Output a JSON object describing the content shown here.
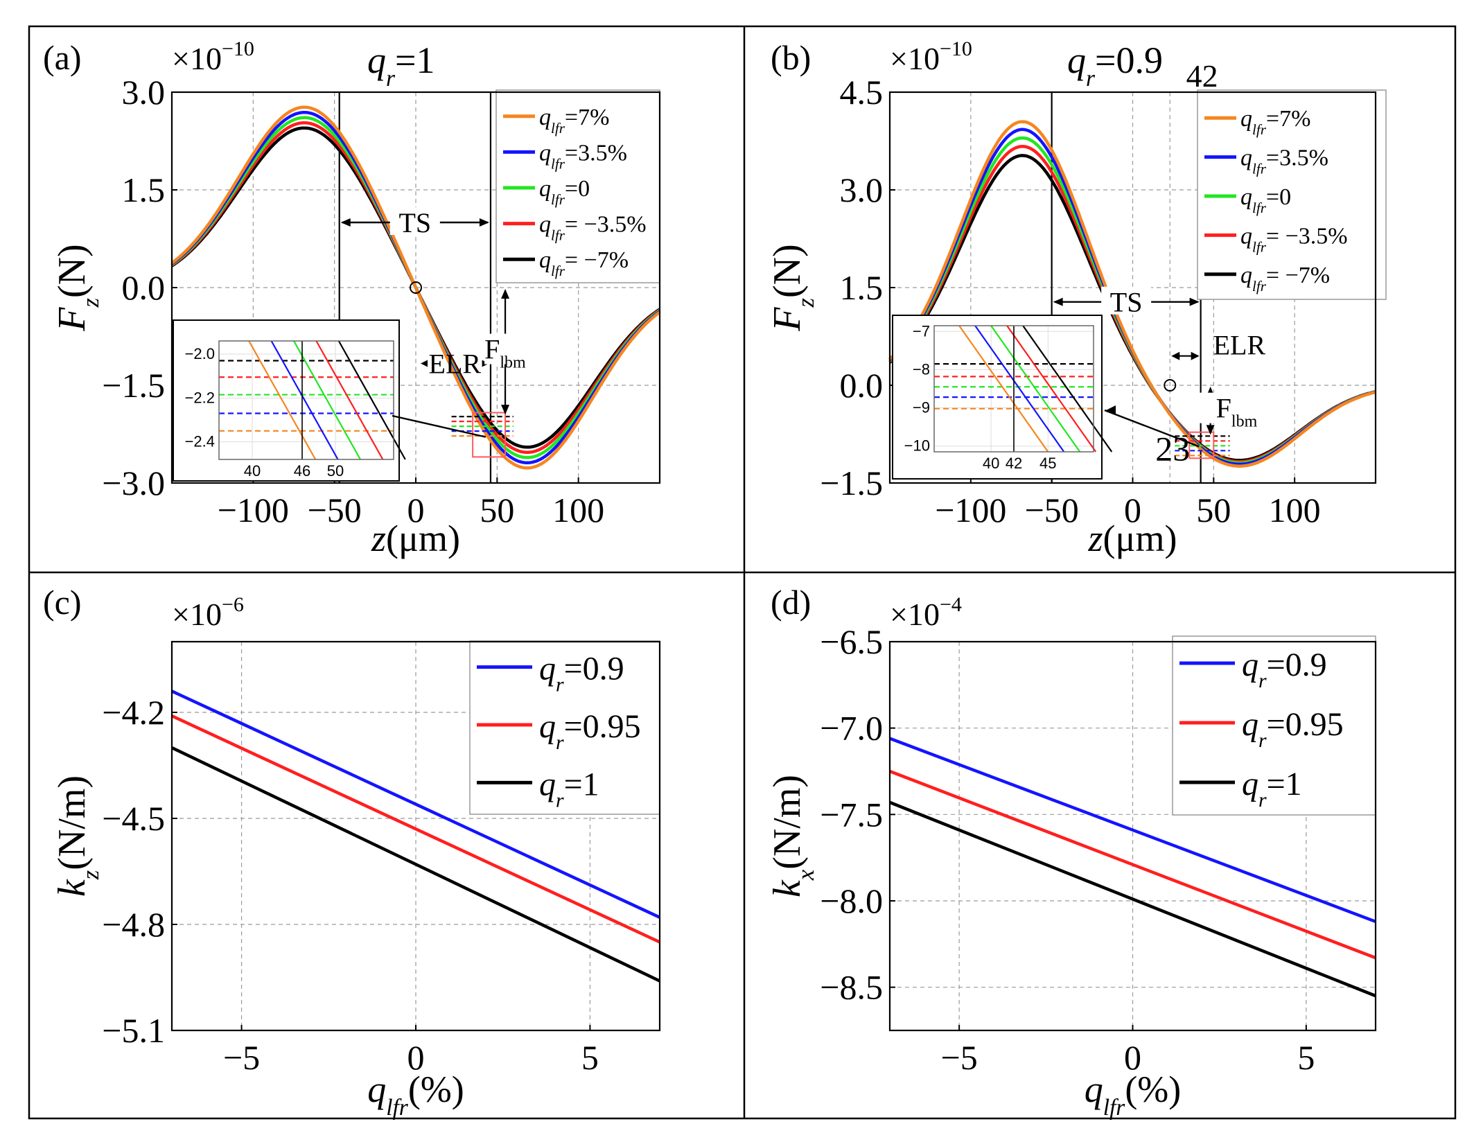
{
  "colors": {
    "orange": "#f5861f",
    "blue": "#1414ff",
    "green": "#22e622",
    "red": "#ff1f1f",
    "black": "#000000",
    "grid": "#9a9a9a",
    "box": "#ff5a5a"
  },
  "chart_data": [
    {
      "id": "a",
      "type": "line",
      "panel_label": "(a)",
      "title": "qr=1",
      "title_parts": {
        "var": "q",
        "sub": "r",
        "rest": "=1"
      },
      "exponent": {
        "base": "×10",
        "power": "−10"
      },
      "xlabel": {
        "var": "z",
        "rest": "(μm)"
      },
      "ylabel": {
        "var": "F",
        "sub": "z",
        "rest": "(N)"
      },
      "xlim": [
        -150,
        150
      ],
      "ylim": [
        -3.0,
        3.0
      ],
      "xticks": [
        -100,
        -50,
        0,
        50,
        100
      ],
      "xticklabels": [
        "−100",
        "−50",
        "0",
        "50",
        "100"
      ],
      "yticks": [
        3.0,
        1.5,
        0.0,
        -1.5,
        -3.0
      ],
      "yticklabels": [
        "3.0",
        "1.5",
        "0.0",
        "−1.5",
        "−3.0"
      ],
      "legend": [
        {
          "label": "qlfr=7%",
          "var": "q",
          "sub": "lfr",
          "rest": "=7%",
          "color": "orange"
        },
        {
          "label": "qlfr=3.5%",
          "var": "q",
          "sub": "lfr",
          "rest": "=3.5%",
          "color": "blue"
        },
        {
          "label": "qlfr=0",
          "var": "q",
          "sub": "lfr",
          "rest": "=0",
          "color": "green"
        },
        {
          "label": "qlfr= −3.5%",
          "var": "q",
          "sub": "lfr",
          "rest": "= −3.5%",
          "color": "red"
        },
        {
          "label": "qlfr= −7%",
          "var": "q",
          "sub": "lfr",
          "rest": "= −7%",
          "color": "black"
        }
      ],
      "curve_model": {
        "peak_z": -68,
        "trough_z": 68,
        "width": 58
      },
      "series": [
        {
          "name": "qlfr=7%",
          "color": "orange",
          "amplitude": 2.78
        },
        {
          "name": "qlfr=3.5%",
          "color": "blue",
          "amplitude": 2.7
        },
        {
          "name": "qlfr=0",
          "color": "green",
          "amplitude": 2.62
        },
        {
          "name": "qlfr=-3.5%",
          "color": "red",
          "amplitude": 2.54
        },
        {
          "name": "qlfr=-7%",
          "color": "black",
          "amplitude": 2.46
        }
      ],
      "vlines": [
        -47,
        46
      ],
      "annotations": {
        "TS": "TS",
        "ELR": "ELR",
        "F_lbm": "F",
        "F_lbm_sub": "lbm",
        "marker_label": "",
        "marker2_label": ""
      },
      "inset": {
        "xlim": [
          36,
          57
        ],
        "ylim": [
          -2.48,
          -1.94
        ],
        "xticks": [
          40,
          46,
          50
        ],
        "xticklabels": [
          "40",
          "46",
          "50"
        ],
        "yticks": [
          -2.0,
          -2.2,
          -2.4
        ],
        "yticklabels": [
          "−2.0",
          "−2.2",
          "−2.4"
        ],
        "vline": 46,
        "levels": [
          {
            "color": "black",
            "y": -2.03
          },
          {
            "color": "red",
            "y": -2.105
          },
          {
            "color": "green",
            "y": -2.185
          },
          {
            "color": "blue",
            "y": -2.27
          },
          {
            "color": "orange",
            "y": -2.35
          }
        ]
      }
    },
    {
      "id": "b",
      "type": "line",
      "panel_label": "(b)",
      "title": "qr=0.9",
      "title_parts": {
        "var": "q",
        "sub": "r",
        "rest": "=0.9"
      },
      "exponent": {
        "base": "×10",
        "power": "−10"
      },
      "xlabel": {
        "var": "z",
        "rest": "(μm)"
      },
      "ylabel": {
        "var": "F",
        "sub": "z",
        "rest": "(N)"
      },
      "xlim": [
        -150,
        150
      ],
      "ylim": [
        -1.5,
        4.5
      ],
      "xticks": [
        -100,
        -50,
        0,
        50,
        100
      ],
      "xticklabels": [
        "−100",
        "−50",
        "0",
        "50",
        "100"
      ],
      "yticks": [
        4.5,
        3.0,
        1.5,
        0.0,
        -1.5
      ],
      "yticklabels": [
        "4.5",
        "3.0",
        "1.5",
        "0.0",
        "−1.5"
      ],
      "legend": [
        {
          "label": "qlfr=7%",
          "var": "q",
          "sub": "lfr",
          "rest": "=7%",
          "color": "orange"
        },
        {
          "label": "qlfr=3.5%",
          "var": "q",
          "sub": "lfr",
          "rest": "=3.5%",
          "color": "blue"
        },
        {
          "label": "qlfr=0",
          "var": "q",
          "sub": "lfr",
          "rest": "=0",
          "color": "green"
        },
        {
          "label": "qlfr= −3.5%",
          "var": "q",
          "sub": "lfr",
          "rest": "= −3.5%",
          "color": "red"
        },
        {
          "label": "qlfr= −7%",
          "var": "q",
          "sub": "lfr",
          "rest": "= −7%",
          "color": "black"
        }
      ],
      "curve_model": {
        "peak_z": -68,
        "trough_z": 65,
        "width": 54
      },
      "series": [
        {
          "name": "qlfr=7%",
          "color": "orange",
          "peak": 4.05,
          "trough": -1.25
        },
        {
          "name": "qlfr=3.5%",
          "color": "blue",
          "peak": 3.93,
          "trough": -1.22
        },
        {
          "name": "qlfr=0",
          "color": "green",
          "peak": 3.8,
          "trough": -1.2
        },
        {
          "name": "qlfr=-3.5%",
          "color": "red",
          "peak": 3.67,
          "trough": -1.18
        },
        {
          "name": "qlfr=-7%",
          "color": "black",
          "peak": 3.53,
          "trough": -1.16
        }
      ],
      "vlines": [
        -50,
        42
      ],
      "dashed_vline": 23,
      "annotations": {
        "TS": "TS",
        "ELR": "ELR",
        "F_lbm": "F",
        "F_lbm_sub": "lbm",
        "marker_label": "42",
        "marker2_label": "23"
      },
      "inset": {
        "xlim": [
          35,
          49
        ],
        "ylim": [
          -10.15,
          -6.85
        ],
        "xticks": [
          40,
          42,
          45
        ],
        "xticklabels": [
          "40",
          "42",
          "45"
        ],
        "yticks": [
          -7,
          -8,
          -9,
          -10
        ],
        "yticklabels": [
          "−7",
          "−8",
          "−9",
          "−10"
        ],
        "vline": 42,
        "levels": [
          {
            "color": "black",
            "y": -7.85
          },
          {
            "color": "red",
            "y": -8.18
          },
          {
            "color": "green",
            "y": -8.45
          },
          {
            "color": "blue",
            "y": -8.72
          },
          {
            "color": "orange",
            "y": -9.02
          }
        ]
      }
    },
    {
      "id": "c",
      "type": "line",
      "panel_label": "(c)",
      "exponent": {
        "base": "×10",
        "power": "−6"
      },
      "xlabel": {
        "var": "q",
        "sub": "lfr",
        "rest": "(%)"
      },
      "ylabel": {
        "var": "k",
        "sub": "z",
        "rest": "(N/m)"
      },
      "xlim": [
        -7,
        7
      ],
      "ylim": [
        -5.1,
        -4.0
      ],
      "xticks": [
        -5,
        0,
        5
      ],
      "xticklabels": [
        "−5",
        "0",
        "5"
      ],
      "yticks": [
        -4.2,
        -4.5,
        -4.8,
        -5.1
      ],
      "yticklabels": [
        "−4.2",
        "−4.5",
        "−4.8",
        "−5.1"
      ],
      "x": [
        -7,
        7
      ],
      "series": [
        {
          "name": "qr=0.9",
          "var": "q",
          "sub": "r",
          "rest": "=0.9",
          "color": "blue",
          "values": [
            -4.14,
            -4.78
          ]
        },
        {
          "name": "qr=0.95",
          "var": "q",
          "sub": "r",
          "rest": "=0.95",
          "color": "red",
          "values": [
            -4.21,
            -4.85
          ]
        },
        {
          "name": "qr=1",
          "var": "q",
          "sub": "r",
          "rest": "=1",
          "color": "black",
          "values": [
            -4.3,
            -4.96
          ]
        }
      ]
    },
    {
      "id": "d",
      "type": "line",
      "panel_label": "(d)",
      "exponent": {
        "base": "×10",
        "power": "−4"
      },
      "xlabel": {
        "var": "q",
        "sub": "lfr",
        "rest": "(%)"
      },
      "ylabel": {
        "var": "k",
        "sub": "x",
        "rest": "(N/m)"
      },
      "xlim": [
        -7,
        7
      ],
      "ylim": [
        -8.75,
        -6.5
      ],
      "xticks": [
        -5,
        0,
        5
      ],
      "xticklabels": [
        "−5",
        "0",
        "5"
      ],
      "yticks": [
        -6.5,
        -7.0,
        -7.5,
        -8.0,
        -8.5
      ],
      "yticklabels": [
        "−6.5",
        "−7.0",
        "−7.5",
        "−8.0",
        "−8.5"
      ],
      "x": [
        -7,
        7
      ],
      "series": [
        {
          "name": "qr=0.9",
          "var": "q",
          "sub": "r",
          "rest": "=0.9",
          "color": "blue",
          "values": [
            -7.06,
            -8.12
          ]
        },
        {
          "name": "qr=0.95",
          "var": "q",
          "sub": "r",
          "rest": "=0.95",
          "color": "red",
          "values": [
            -7.25,
            -8.33
          ]
        },
        {
          "name": "qr=1",
          "var": "q",
          "sub": "r",
          "rest": "=1",
          "color": "black",
          "values": [
            -7.43,
            -8.55
          ]
        }
      ]
    }
  ]
}
